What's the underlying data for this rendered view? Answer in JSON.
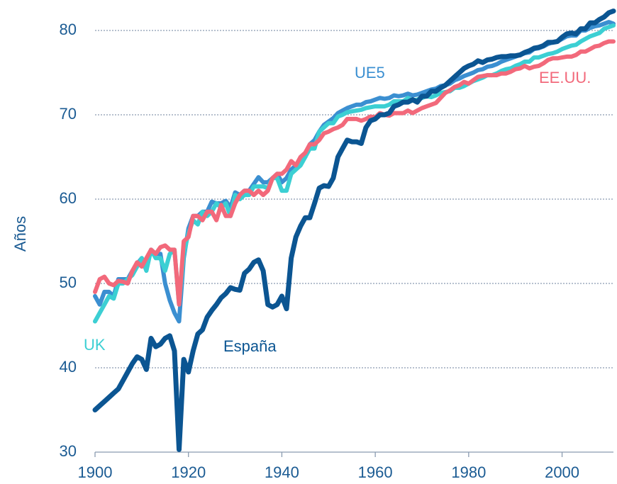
{
  "chart_data": {
    "type": "line",
    "y_label": "Años",
    "x": [
      1900,
      1901,
      1902,
      1903,
      1904,
      1905,
      1906,
      1907,
      1908,
      1909,
      1910,
      1911,
      1912,
      1913,
      1914,
      1915,
      1916,
      1917,
      1918,
      1919,
      1920,
      1921,
      1922,
      1923,
      1924,
      1925,
      1926,
      1927,
      1928,
      1929,
      1930,
      1931,
      1932,
      1933,
      1934,
      1935,
      1936,
      1937,
      1938,
      1939,
      1940,
      1941,
      1942,
      1943,
      1944,
      1945,
      1946,
      1947,
      1948,
      1949,
      1950,
      1951,
      1952,
      1953,
      1954,
      1955,
      1956,
      1957,
      1958,
      1959,
      1960,
      1961,
      1962,
      1963,
      1964,
      1965,
      1966,
      1967,
      1968,
      1969,
      1970,
      1971,
      1972,
      1973,
      1974,
      1975,
      1976,
      1977,
      1978,
      1979,
      1980,
      1981,
      1982,
      1983,
      1984,
      1985,
      1986,
      1987,
      1988,
      1989,
      1990,
      1991,
      1992,
      1993,
      1994,
      1995,
      1996,
      1997,
      1998,
      1999,
      2000,
      2001,
      2002,
      2003,
      2004,
      2005,
      2006,
      2007,
      2008,
      2009,
      2010,
      2011
    ],
    "series": [
      {
        "name": "España",
        "color": "#0b5592",
        "values": [
          35.0,
          35.5,
          36.0,
          36.5,
          37.0,
          37.5,
          38.5,
          39.5,
          40.5,
          41.3,
          41.0,
          39.8,
          43.5,
          42.5,
          42.8,
          43.5,
          43.8,
          42.0,
          30.3,
          41.0,
          39.5,
          42.0,
          44.0,
          44.5,
          46.0,
          46.8,
          47.5,
          48.3,
          48.8,
          49.5,
          49.3,
          49.2,
          51.2,
          51.7,
          52.5,
          52.8,
          51.5,
          47.5,
          47.2,
          47.5,
          48.5,
          47.0,
          53.0,
          55.5,
          56.8,
          57.8,
          57.8,
          59.5,
          61.3,
          61.6,
          61.5,
          62.5,
          65.0,
          66.0,
          67.0,
          66.8,
          66.8,
          66.6,
          68.5,
          69.3,
          69.5,
          70.0,
          70.0,
          70.2,
          71.0,
          71.2,
          71.5,
          71.5,
          71.8,
          71.5,
          72.2,
          72.2,
          72.8,
          72.8,
          73.2,
          73.5,
          74.0,
          74.5,
          75.0,
          75.5,
          75.8,
          76.0,
          76.4,
          76.2,
          76.5,
          76.6,
          76.8,
          76.9,
          76.9,
          77.0,
          77.0,
          77.1,
          77.4,
          77.6,
          77.9,
          78.0,
          78.2,
          78.6,
          78.6,
          78.7,
          79.2,
          79.6,
          79.7,
          79.6,
          80.2,
          80.2,
          80.9,
          80.9,
          81.3,
          81.6,
          82.1,
          82.3
        ]
      },
      {
        "name": "UK",
        "color": "#3ccfd3",
        "values": [
          45.5,
          46.5,
          47.5,
          48.5,
          48.2,
          50.0,
          50.0,
          50.5,
          51.0,
          52.0,
          53.0,
          51.5,
          54.0,
          53.0,
          53.0,
          51.5,
          53.5,
          54.0,
          47.5,
          53.5,
          56.0,
          57.5,
          57.0,
          58.5,
          58.0,
          58.5,
          59.5,
          59.0,
          59.5,
          58.0,
          60.5,
          60.0,
          60.5,
          60.5,
          61.5,
          61.5,
          61.5,
          61.3,
          62.5,
          62.5,
          61.0,
          61.0,
          63.0,
          63.5,
          64.0,
          65.0,
          66.0,
          66.0,
          68.0,
          68.5,
          69.0,
          69.0,
          69.8,
          70.0,
          70.3,
          70.4,
          70.5,
          70.6,
          70.8,
          70.9,
          71.0,
          71.0,
          71.0,
          71.2,
          71.6,
          71.6,
          71.6,
          72.0,
          71.7,
          71.8,
          72.0,
          72.2,
          72.1,
          72.3,
          72.6,
          72.7,
          72.8,
          73.2,
          73.2,
          73.4,
          73.7,
          74.0,
          74.2,
          74.4,
          74.7,
          74.7,
          74.9,
          75.2,
          75.4,
          75.5,
          75.8,
          76.0,
          76.3,
          76.3,
          76.8,
          76.8,
          77.0,
          77.2,
          77.3,
          77.5,
          77.8,
          78.0,
          78.2,
          78.3,
          78.7,
          79.0,
          79.3,
          79.5,
          79.7,
          80.2,
          80.4,
          80.6
        ]
      },
      {
        "name": "UE5",
        "color": "#3b8fd1",
        "values": [
          48.5,
          47.5,
          49.0,
          49.0,
          48.5,
          50.5,
          50.5,
          50.5,
          51.5,
          52.3,
          53.0,
          52.0,
          54.0,
          53.5,
          53.5,
          50.0,
          48.0,
          46.5,
          45.5,
          53.0,
          56.5,
          58.0,
          58.0,
          58.5,
          58.5,
          59.7,
          59.5,
          59.5,
          59.8,
          59.0,
          60.8,
          60.5,
          61.0,
          61.0,
          61.8,
          62.6,
          62.0,
          62.0,
          62.5,
          63.0,
          62.0,
          62.5,
          63.5,
          64.0,
          64.5,
          65.0,
          66.5,
          67.0,
          68.0,
          68.8,
          69.2,
          69.6,
          70.2,
          70.5,
          70.8,
          71.0,
          71.2,
          71.2,
          71.5,
          71.6,
          71.8,
          72.0,
          71.9,
          72.0,
          72.3,
          72.2,
          72.3,
          72.5,
          72.3,
          72.4,
          72.6,
          72.8,
          73.0,
          73.1,
          73.4,
          73.5,
          73.7,
          74.1,
          74.3,
          74.6,
          74.8,
          75.0,
          75.3,
          75.4,
          75.7,
          75.8,
          76.0,
          76.3,
          76.5,
          76.7,
          76.9,
          77.1,
          77.3,
          77.4,
          77.8,
          77.9,
          78.1,
          78.4,
          78.6,
          78.7,
          79.0,
          79.3,
          79.4,
          79.4,
          80.0,
          80.0,
          80.3,
          80.5,
          80.6,
          80.8,
          81.0,
          80.8
        ]
      },
      {
        "name": "EE.UU.",
        "color": "#f2697b",
        "values": [
          49.0,
          50.5,
          50.8,
          50.0,
          49.8,
          50.3,
          50.2,
          50.0,
          51.5,
          52.5,
          52.0,
          53.0,
          54.0,
          53.5,
          54.3,
          54.5,
          54.0,
          54.0,
          47.5,
          55.0,
          55.5,
          58.0,
          58.0,
          57.5,
          58.5,
          58.5,
          57.5,
          59.3,
          58.0,
          58.0,
          59.5,
          60.5,
          61.0,
          61.0,
          60.5,
          61.0,
          60.5,
          61.0,
          62.5,
          63.0,
          63.0,
          63.5,
          64.5,
          64.0,
          65.0,
          65.5,
          66.5,
          66.5,
          67.0,
          67.8,
          68.0,
          68.3,
          68.5,
          68.8,
          69.5,
          69.5,
          69.5,
          69.3,
          69.5,
          69.8,
          69.7,
          70.2,
          70.0,
          69.9,
          70.2,
          70.2,
          70.2,
          70.5,
          70.2,
          70.5,
          70.8,
          71.0,
          71.2,
          71.4,
          72.0,
          72.6,
          72.9,
          73.3,
          73.5,
          73.9,
          73.7,
          74.1,
          74.5,
          74.6,
          74.7,
          74.7,
          74.7,
          74.9,
          74.9,
          75.1,
          75.4,
          75.5,
          75.8,
          75.5,
          75.7,
          75.8,
          76.1,
          76.5,
          76.7,
          76.7,
          76.8,
          76.9,
          76.9,
          77.1,
          77.5,
          77.5,
          77.8,
          78.1,
          78.2,
          78.5,
          78.7,
          78.7
        ]
      }
    ],
    "xlim": [
      1900,
      2011
    ],
    "ylim": [
      30,
      83
    ],
    "xticks": [
      1900,
      1920,
      1940,
      1960,
      1980,
      2000
    ],
    "yticks": [
      30,
      40,
      50,
      60,
      70,
      80
    ],
    "grid": true
  }
}
